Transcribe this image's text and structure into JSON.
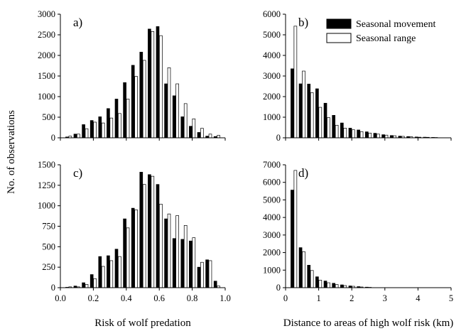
{
  "chart_data": {
    "type": "bar",
    "y_axis_label": "No. of observations",
    "legend": {
      "placement": "top-right of panel b",
      "entries": [
        {
          "label": "Seasonal movement",
          "fill": "#000000"
        },
        {
          "label": "Seasonal range",
          "fill": "#ffffff"
        }
      ]
    },
    "colors": {
      "seasonal_movement": "#000000",
      "seasonal_range": "#ffffff",
      "outline": "#000000"
    },
    "panels": [
      {
        "label": "a)",
        "xlabel": "",
        "x_range": [
          0.0,
          1.0
        ],
        "ylim": [
          0,
          3000
        ],
        "yticks": [
          "0",
          "500",
          "1000",
          "1500",
          "2000",
          "2500",
          "3000"
        ],
        "xticks": [],
        "bin_width": 0.05,
        "x": [
          0.05,
          0.1,
          0.15,
          0.2,
          0.25,
          0.3,
          0.35,
          0.4,
          0.45,
          0.5,
          0.55,
          0.6,
          0.65,
          0.7,
          0.75,
          0.8,
          0.85,
          0.9,
          0.95
        ],
        "series": [
          {
            "name": "Seasonal movement",
            "values": [
              20,
              90,
              320,
              420,
              510,
              710,
              940,
              1340,
              1760,
              2080,
              2640,
              2700,
              1310,
              1020,
              510,
              280,
              130,
              40,
              30
            ]
          },
          {
            "name": "Seasonal range",
            "values": [
              40,
              90,
              220,
              380,
              360,
              480,
              590,
              940,
              1490,
              1880,
              2580,
              2480,
              1700,
              1310,
              830,
              460,
              230,
              90,
              60
            ]
          }
        ]
      },
      {
        "label": "b)",
        "xlabel": "",
        "x_range": [
          0,
          5
        ],
        "ylim": [
          0,
          6000
        ],
        "yticks": [
          "0",
          "1000",
          "2000",
          "3000",
          "4000",
          "5000",
          "6000"
        ],
        "xticks": [],
        "bin_width": 0.25,
        "x": [
          0.25,
          0.5,
          0.75,
          1.0,
          1.25,
          1.5,
          1.75,
          2.0,
          2.25,
          2.5,
          2.75,
          3.0,
          3.25,
          3.5,
          3.75,
          4.0,
          4.25,
          4.5
        ],
        "series": [
          {
            "name": "Seasonal movement",
            "values": [
              3350,
              2620,
              2610,
              2380,
              1680,
              1090,
              720,
              470,
              380,
              290,
              220,
              150,
              110,
              80,
              60,
              40,
              30,
              20
            ]
          },
          {
            "name": "Seasonal range",
            "values": [
              5420,
              3240,
              2190,
              1480,
              980,
              610,
              470,
              390,
              300,
              230,
              180,
              130,
              100,
              70,
              50,
              30,
              25,
              15
            ]
          }
        ]
      },
      {
        "label": "c)",
        "xlabel": "Risk of wolf predation",
        "x_range": [
          0.0,
          1.0
        ],
        "ylim": [
          0,
          1500
        ],
        "yticks": [
          "0",
          "250",
          "500",
          "750",
          "1000",
          "1250",
          "1500"
        ],
        "xticks": [
          "0.0",
          "0.2",
          "0.4",
          "0.6",
          "0.8",
          "1.0"
        ],
        "bin_width": 0.05,
        "x": [
          0.05,
          0.1,
          0.15,
          0.2,
          0.25,
          0.3,
          0.35,
          0.4,
          0.45,
          0.5,
          0.55,
          0.6,
          0.65,
          0.7,
          0.75,
          0.8,
          0.85,
          0.9,
          0.95
        ],
        "series": [
          {
            "name": "Seasonal movement",
            "values": [
              5,
              20,
              60,
              160,
              380,
              390,
              470,
              840,
              970,
              1410,
              1380,
              1260,
              840,
              600,
              590,
              570,
              250,
              340,
              80
            ]
          },
          {
            "name": "Seasonal range",
            "values": [
              10,
              10,
              40,
              110,
              260,
              330,
              380,
              730,
              950,
              1260,
              1360,
              1020,
              900,
              880,
              760,
              610,
              310,
              330,
              20
            ]
          }
        ]
      },
      {
        "label": "d)",
        "xlabel": "Distance to areas of high wolf risk (km)",
        "x_range": [
          0,
          5
        ],
        "ylim": [
          0,
          7000
        ],
        "yticks": [
          "0",
          "1000",
          "2000",
          "3000",
          "4000",
          "5000",
          "6000",
          "7000"
        ],
        "xticks": [
          "0",
          "1",
          "2",
          "3",
          "4",
          "5"
        ],
        "bin_width": 0.25,
        "x": [
          0.25,
          0.5,
          0.75,
          1.0,
          1.25,
          1.5,
          1.75,
          2.0,
          2.25,
          2.5
        ],
        "series": [
          {
            "name": "Seasonal movement",
            "values": [
              5560,
              2280,
              1280,
              620,
              380,
              250,
              160,
              100,
              60,
              30
            ]
          },
          {
            "name": "Seasonal range",
            "values": [
              6680,
              2050,
              980,
              430,
              280,
              180,
              120,
              80,
              40,
              20
            ]
          }
        ]
      }
    ]
  }
}
